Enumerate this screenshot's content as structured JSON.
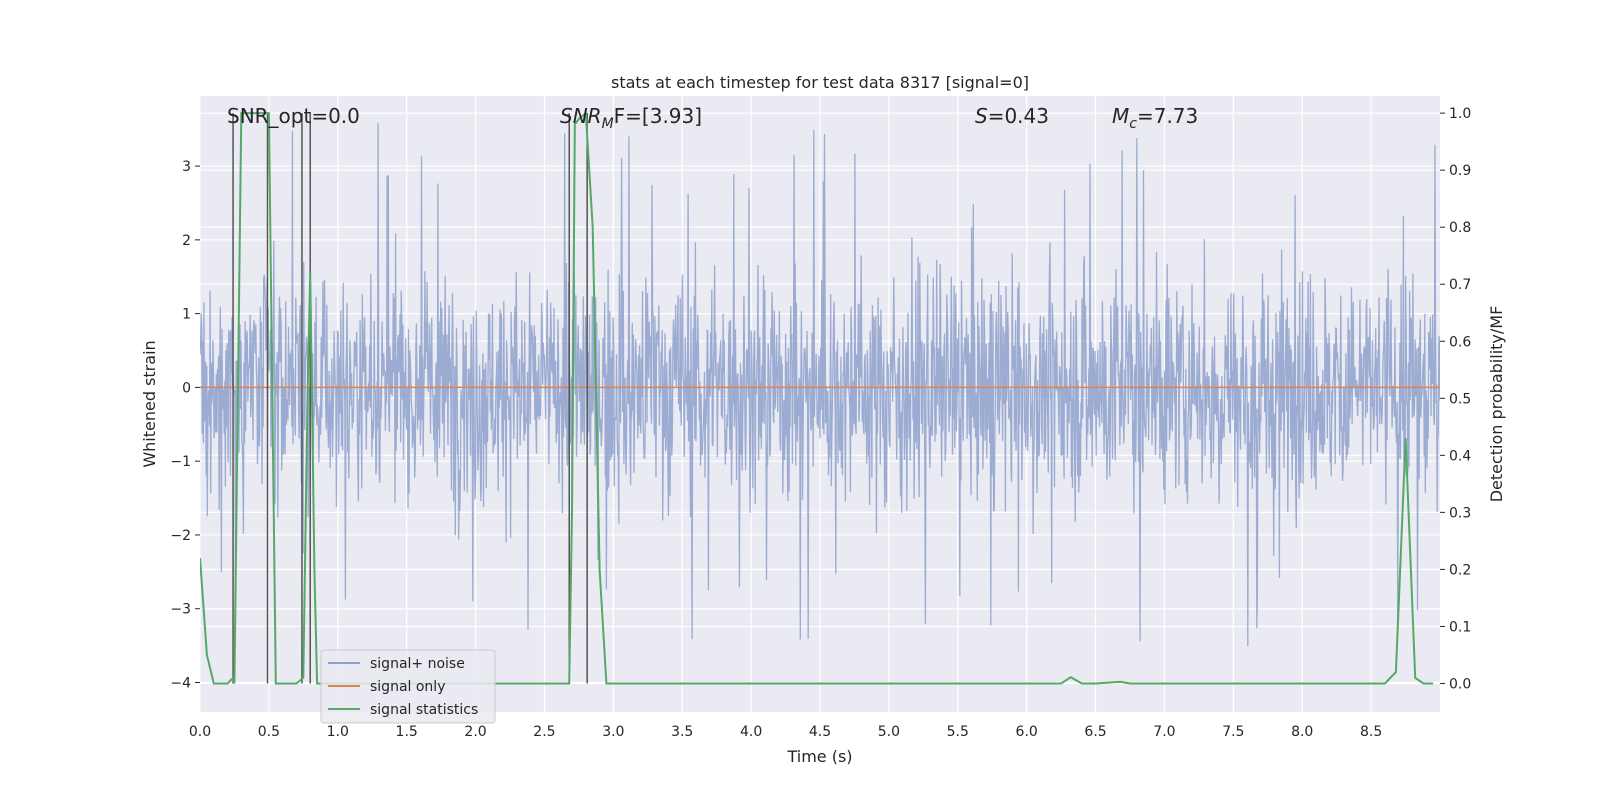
{
  "chart_data": {
    "type": "line",
    "title": "stats at each timestep for test data 8317 [signal=0]",
    "xlabel": "Time (s)",
    "ylabel": "Whitened strain",
    "ylabel_right": "Detection probability/MF",
    "xlim": [
      0.0,
      9.0
    ],
    "ylim": [
      -4.4,
      3.95
    ],
    "ylim_right": [
      -0.05,
      1.03
    ],
    "x_ticks": [
      "0.0",
      "0.5",
      "1.0",
      "1.5",
      "2.0",
      "2.5",
      "3.0",
      "3.5",
      "4.0",
      "4.5",
      "5.0",
      "5.5",
      "6.0",
      "6.5",
      "7.0",
      "7.5",
      "8.0",
      "8.5"
    ],
    "y_ticks": [
      "3",
      "2",
      "1",
      "0",
      "−1",
      "−2",
      "−3",
      "−4"
    ],
    "y_ticks_right": [
      "1.0",
      "0.9",
      "0.8",
      "0.7",
      "0.6",
      "0.5",
      "0.4",
      "0.3",
      "0.2",
      "0.1",
      "0.0"
    ],
    "annotations": {
      "snr_opt": "SNR_opt=0.0",
      "snr_mf_main": "SNR",
      "snr_mf_sub": "M",
      "snr_mf_rest": "F=[3.93]",
      "s_sym": "S",
      "s_val": "=0.43",
      "mc_sym": "M",
      "mc_sub": "c",
      "mc_val": "=7.73"
    },
    "legend": {
      "position": "lower-left",
      "entries": [
        "signal+ noise",
        "signal only",
        "signal statistics"
      ]
    },
    "series": [
      {
        "name": "signal+ noise",
        "color": "#8da0cb",
        "description": "whitened strain noise, roughly uniform band between -2 and +2.2 with spikes up to 3.6 and down to -4",
        "band_upper": 2.0,
        "band_lower": -1.8,
        "peak_upper": 3.6,
        "peak_lower": -4.0
      },
      {
        "name": "signal only",
        "color": "#dd8452",
        "x": [
          0.0,
          9.0
        ],
        "y": [
          0.0,
          0.0
        ]
      },
      {
        "name": "signal statistics",
        "color": "#55a868",
        "axis": "right",
        "x": [
          0.0,
          0.05,
          0.1,
          0.15,
          0.2,
          0.24,
          0.25,
          0.3,
          0.35,
          0.4,
          0.45,
          0.5,
          0.55,
          0.6,
          0.65,
          0.7,
          0.75,
          0.78,
          0.8,
          0.83,
          0.85,
          0.9,
          1.0,
          2.0,
          2.68,
          2.7,
          2.72,
          2.75,
          2.8,
          2.85,
          2.9,
          2.95,
          3.0,
          4.0,
          5.0,
          6.0,
          6.25,
          6.32,
          6.4,
          6.5,
          6.68,
          6.75,
          7.0,
          8.0,
          8.6,
          8.68,
          8.75,
          8.82,
          8.88,
          8.95
        ],
        "y": [
          0.22,
          0.05,
          0.0,
          0.0,
          0.0,
          0.01,
          0.0,
          1.0,
          1.0,
          1.0,
          1.0,
          1.0,
          0.0,
          0.0,
          0.0,
          0.0,
          0.01,
          0.5,
          0.72,
          0.2,
          0.0,
          0.0,
          0.0,
          0.0,
          0.0,
          0.3,
          0.98,
          0.99,
          1.0,
          0.8,
          0.2,
          0.0,
          0.0,
          0.0,
          0.0,
          0.0,
          0.0,
          0.011,
          0.0,
          0.0,
          0.003,
          0.0,
          0.0,
          0.0,
          0.0,
          0.02,
          0.43,
          0.01,
          0.0,
          0.0
        ]
      }
    ],
    "vertical_markers_x": [
      0.24,
      0.49,
      0.74,
      0.8,
      2.68,
      2.81
    ]
  }
}
